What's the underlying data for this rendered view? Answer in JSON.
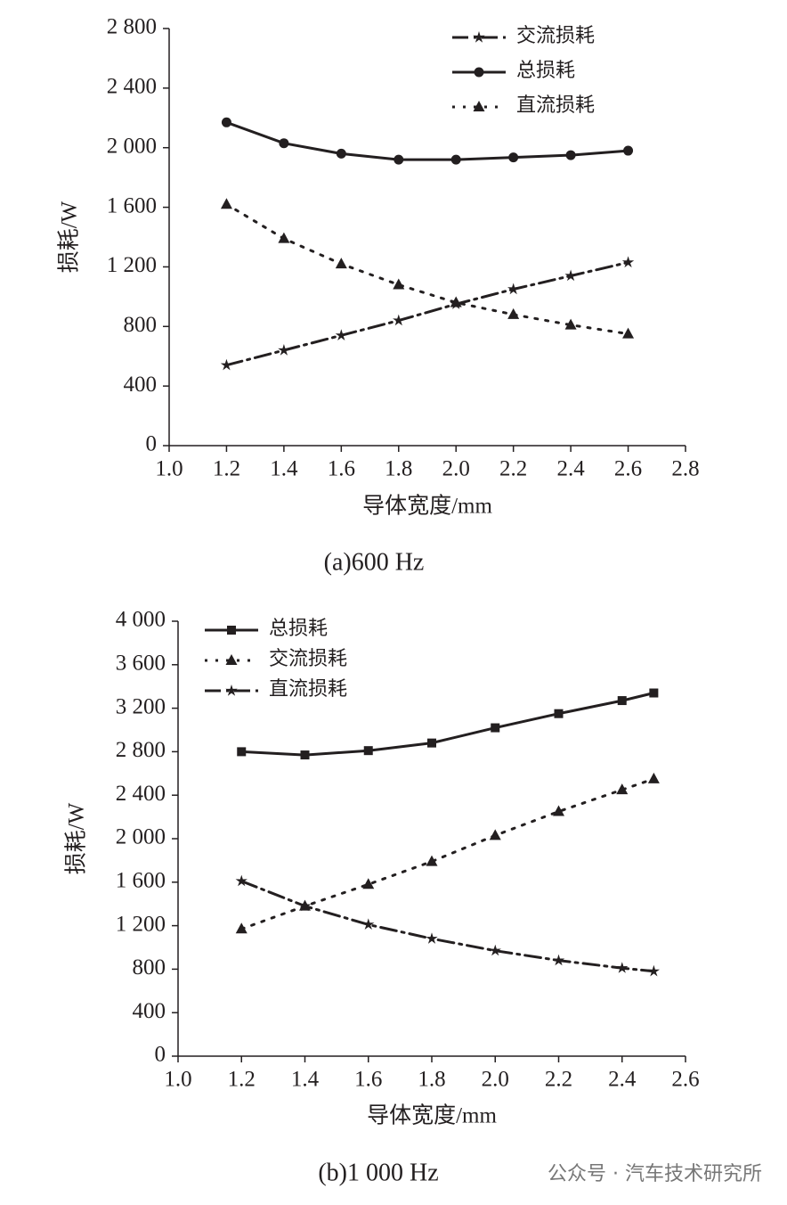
{
  "chart_data": [
    {
      "type": "line",
      "caption": "(a)600 Hz",
      "xlabel": "导体宽度/mm",
      "ylabel": "损耗/W",
      "x": [
        1.2,
        1.4,
        1.6,
        1.8,
        2.0,
        2.2,
        2.4,
        2.6
      ],
      "xlim": [
        1.0,
        2.8
      ],
      "xticks": [
        {
          "value": 1.0,
          "label": "1.0"
        },
        {
          "value": 1.2,
          "label": "1.2"
        },
        {
          "value": 1.4,
          "label": "1.4"
        },
        {
          "value": 1.6,
          "label": "1.6"
        },
        {
          "value": 1.8,
          "label": "1.8"
        },
        {
          "value": 2.0,
          "label": "2.0"
        },
        {
          "value": 2.2,
          "label": "2.2"
        },
        {
          "value": 2.4,
          "label": "2.4"
        },
        {
          "value": 2.6,
          "label": "2.6"
        },
        {
          "value": 2.8,
          "label": "2.8"
        }
      ],
      "ylim": [
        0,
        2800
      ],
      "yticks": [
        0,
        400,
        800,
        {
          "value": 1200,
          "label": "1 200"
        },
        {
          "value": 1600,
          "label": "1 600"
        },
        {
          "value": 2000,
          "label": "2 000"
        },
        {
          "value": 2400,
          "label": "2 400"
        },
        {
          "value": 2800,
          "label": "2 800"
        }
      ],
      "legend": "upper-right",
      "series": [
        {
          "name": "交流损耗",
          "color": "#231f20",
          "marker": "star",
          "dash": "dashdot",
          "values": [
            540,
            640,
            740,
            840,
            950,
            1050,
            1140,
            1230
          ]
        },
        {
          "name": "总损耗",
          "color": "#231f20",
          "marker": "circle",
          "dash": "solid",
          "values": [
            2170,
            2030,
            1960,
            1920,
            1920,
            1935,
            1950,
            1980
          ]
        },
        {
          "name": "直流损耗",
          "color": "#231f20",
          "marker": "triangle",
          "dash": "dotted",
          "values": [
            1620,
            1390,
            1220,
            1080,
            960,
            880,
            810,
            750
          ]
        }
      ]
    },
    {
      "type": "line",
      "caption": "(b)1 000 Hz",
      "xlabel": "导体宽度/mm",
      "ylabel": "损耗/W",
      "x": [
        1.2,
        1.4,
        1.6,
        1.8,
        2.0,
        2.2,
        2.4,
        2.5
      ],
      "xlim": [
        1.0,
        2.6
      ],
      "xticks": [
        {
          "value": 1.0,
          "label": "1.0"
        },
        {
          "value": 1.2,
          "label": "1.2"
        },
        {
          "value": 1.4,
          "label": "1.4"
        },
        {
          "value": 1.6,
          "label": "1.6"
        },
        {
          "value": 1.8,
          "label": "1.8"
        },
        {
          "value": 2.0,
          "label": "2.0"
        },
        {
          "value": 2.2,
          "label": "2.2"
        },
        {
          "value": 2.4,
          "label": "2.4"
        },
        {
          "value": 2.6,
          "label": "2.6"
        }
      ],
      "ylim": [
        0,
        4000
      ],
      "yticks": [
        0,
        400,
        800,
        {
          "value": 1200,
          "label": "1 200"
        },
        {
          "value": 1600,
          "label": "1 600"
        },
        {
          "value": 2000,
          "label": "2 000"
        },
        {
          "value": 2400,
          "label": "2 400"
        },
        {
          "value": 2800,
          "label": "2 800"
        },
        {
          "value": 3200,
          "label": "3 200"
        },
        {
          "value": 3600,
          "label": "3 600"
        },
        {
          "value": 4000,
          "label": "4 000"
        }
      ],
      "legend": "upper-left",
      "series": [
        {
          "name": "总损耗",
          "color": "#231f20",
          "marker": "square",
          "dash": "solid",
          "values": [
            2800,
            2770,
            2810,
            2880,
            3020,
            3150,
            3270,
            3340
          ]
        },
        {
          "name": "交流损耗",
          "color": "#231f20",
          "marker": "triangle",
          "dash": "dotted",
          "values": [
            1170,
            1380,
            1580,
            1790,
            2030,
            2250,
            2450,
            2550
          ]
        },
        {
          "name": "直流损耗",
          "color": "#231f20",
          "marker": "star",
          "dash": "dashdot",
          "values": [
            1610,
            1380,
            1210,
            1080,
            970,
            880,
            810,
            780
          ]
        }
      ]
    }
  ],
  "watermark": "公众号 · 汽车技术研究所"
}
